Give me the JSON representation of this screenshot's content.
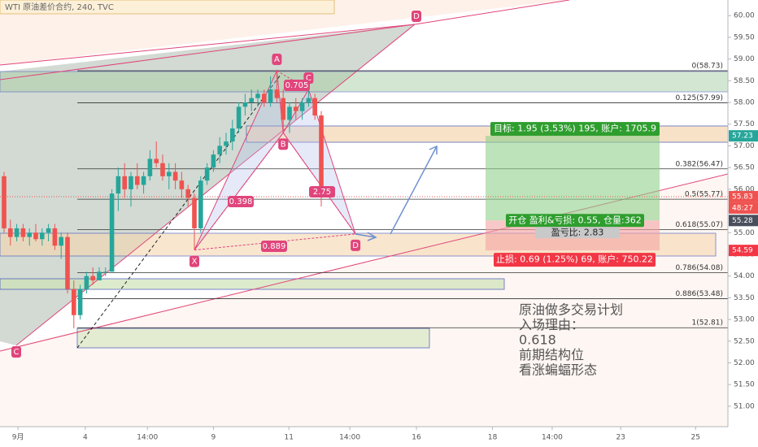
{
  "chart_data": {
    "type": "candlestick",
    "title": "WTI 原油差价合约, 240, TVC",
    "countdown": "48:27",
    "x": [
      0,
      1,
      2,
      3,
      4,
      5,
      6,
      7,
      8,
      9,
      10,
      11,
      12,
      13,
      14,
      15,
      16,
      17,
      18,
      19,
      20,
      21,
      22,
      23,
      24,
      25,
      26,
      27,
      28,
      29,
      30,
      31,
      32,
      33,
      34,
      35,
      36,
      37,
      38,
      39,
      40,
      41,
      42,
      43,
      44,
      45,
      46,
      47,
      48,
      49,
      50
    ],
    "open": [
      56.3,
      55.1,
      54.9,
      55.1,
      54.9,
      55.0,
      54.85,
      55.0,
      55.1,
      54.7,
      54.9,
      53.7,
      53.1,
      53.7,
      54.0,
      53.9,
      54.1,
      54.1,
      55.9,
      56.3,
      56.0,
      56.3,
      56.1,
      56.3,
      56.7,
      56.6,
      56.3,
      56.4,
      56.2,
      56.0,
      55.8,
      55.1,
      56.2,
      56.5,
      56.8,
      57.0,
      57.1,
      57.4,
      57.9,
      58.0,
      58.1,
      58.2,
      58.0,
      58.3,
      58.1,
      57.6,
      57.9,
      57.8,
      58.0,
      58.1,
      57.7
    ],
    "high": [
      56.4,
      55.3,
      55.2,
      55.2,
      55.1,
      55.2,
      55.1,
      55.2,
      55.2,
      55.0,
      55.0,
      53.9,
      53.8,
      54.1,
      54.2,
      54.2,
      54.2,
      56.0,
      56.5,
      56.6,
      56.4,
      56.6,
      56.4,
      56.9,
      57.1,
      56.8,
      56.6,
      56.6,
      56.4,
      56.1,
      55.9,
      56.3,
      56.6,
      56.9,
      57.2,
      57.3,
      57.6,
      58.0,
      58.2,
      58.3,
      58.3,
      58.3,
      58.6,
      58.73,
      58.3,
      58.0,
      58.1,
      58.1,
      58.3,
      58.2,
      57.8
    ],
    "low": [
      55.0,
      54.7,
      54.8,
      54.8,
      54.7,
      54.8,
      54.7,
      54.8,
      54.6,
      54.4,
      53.6,
      52.8,
      53.0,
      53.6,
      53.8,
      53.9,
      54.0,
      54.1,
      55.5,
      55.8,
      55.6,
      56.0,
      55.9,
      56.2,
      56.5,
      56.2,
      56.0,
      56.0,
      55.8,
      55.6,
      54.6,
      55.0,
      56.1,
      56.4,
      56.6,
      56.8,
      56.9,
      57.3,
      57.7,
      57.8,
      57.9,
      57.9,
      57.9,
      58.0,
      57.3,
      57.3,
      57.6,
      57.6,
      57.9,
      57.6,
      55.6
    ],
    "close": [
      55.1,
      54.9,
      55.1,
      54.9,
      55.0,
      54.85,
      55.0,
      55.1,
      54.7,
      54.9,
      53.7,
      53.1,
      53.7,
      54.0,
      53.9,
      54.1,
      54.1,
      55.9,
      56.3,
      56.0,
      56.3,
      56.1,
      56.3,
      56.7,
      56.6,
      56.3,
      56.4,
      56.2,
      56.0,
      55.8,
      55.1,
      56.2,
      56.5,
      56.8,
      57.0,
      57.1,
      57.4,
      57.9,
      58.0,
      58.1,
      58.2,
      58.0,
      58.3,
      58.1,
      57.6,
      57.9,
      57.8,
      58.0,
      58.1,
      57.7,
      55.83
    ],
    "up_color": "#26a69a",
    "down_color": "#ef5350",
    "xlim": [
      -0.64,
      114.1
    ],
    "ylim": [
      50.53,
      60.36
    ],
    "xticks": [
      {
        "value": 2.2,
        "label": "9月"
      },
      {
        "value": 12.8,
        "label": "4"
      },
      {
        "value": 22.6,
        "label": "14:00"
      },
      {
        "value": 33,
        "label": "9"
      },
      {
        "value": 44.9,
        "label": "11"
      },
      {
        "value": 54.5,
        "label": "14:00"
      },
      {
        "value": 65,
        "label": "16"
      },
      {
        "value": 77,
        "label": "18"
      },
      {
        "value": 86.4,
        "label": "14:00"
      },
      {
        "value": 97.2,
        "label": "23"
      },
      {
        "value": 109,
        "label": "25"
      }
    ],
    "yticks": [
      {
        "value": 51,
        "label": "51.00"
      },
      {
        "value": 51.5,
        "label": "51.50"
      },
      {
        "value": 52,
        "label": "52.00"
      },
      {
        "value": 52.5,
        "label": "52.50"
      },
      {
        "value": 53,
        "label": "53.00"
      },
      {
        "value": 53.5,
        "label": "53.50"
      },
      {
        "value": 54,
        "label": "54.00"
      },
      {
        "value": 54.5,
        "label": "54.50"
      },
      {
        "value": 55,
        "label": "55.00"
      },
      {
        "value": 55.5,
        "label": "55.50"
      },
      {
        "value": 56,
        "label": "56.00"
      },
      {
        "value": 56.5,
        "label": "56.50"
      },
      {
        "value": 57,
        "label": "57.00"
      },
      {
        "value": 57.5,
        "label": "57.50"
      },
      {
        "value": 58,
        "label": "58.00"
      },
      {
        "value": 58.5,
        "label": "58.50"
      },
      {
        "value": 59,
        "label": "59.00"
      },
      {
        "value": 59.5,
        "label": "59.50"
      },
      {
        "value": 60,
        "label": "60.00"
      }
    ],
    "fib_levels": [
      {
        "value": 58.73,
        "label": "0(58.73)"
      },
      {
        "value": 57.99,
        "label": "0.125(57.99)"
      },
      {
        "value": 56.47,
        "label": "0.382(56.47)"
      },
      {
        "value": 55.77,
        "label": "0.5(55.77)"
      },
      {
        "value": 55.07,
        "label": "0.618(55.07)"
      },
      {
        "value": 54.08,
        "label": "0.786(54.08)"
      },
      {
        "value": 53.48,
        "label": "0.886(53.48)"
      },
      {
        "value": 52.81,
        "label": "1(52.81)"
      }
    ],
    "price_tags": [
      {
        "value": 57.23,
        "color": "#26a69a"
      },
      {
        "value": 55.83,
        "color": "#ef5350"
      },
      {
        "value": 55.28,
        "color": "#4a4f5c"
      },
      {
        "value": 54.59,
        "color": "#f23645"
      }
    ],
    "pattern": {
      "points": [
        {
          "label": "X",
          "x": 30,
          "price": 54.6
        },
        {
          "label": "A",
          "x": 43,
          "price": 58.73
        },
        {
          "label": "B",
          "x": 44,
          "price": 57.3
        },
        {
          "label": "C",
          "x": 48,
          "price": 58.3
        },
        {
          "label": "D",
          "x": 55.4,
          "price": 54.97
        }
      ],
      "ratios": [
        0.705,
        0.398,
        2.75,
        0.889
      ]
    },
    "outer_labels": [
      "C",
      "D"
    ],
    "position": {
      "entry": 55.28,
      "target": 57.23,
      "stop": 54.59,
      "target_label": "目标: 1.95 (3.53%) 195, 账户: 1705.9",
      "open_label": "开仓 盈利&亏损: 0.55, 仓量:362",
      "ratio_label": "盈亏比: 2.83",
      "stop_label": "止损: 0.69 (1.25%) 69, 账户: 750.22"
    },
    "notes": [
      "原油做多交易计划",
      "入场理由：",
      "0.618",
      "前期结构位",
      "看涨蝙蝠形态"
    ]
  }
}
